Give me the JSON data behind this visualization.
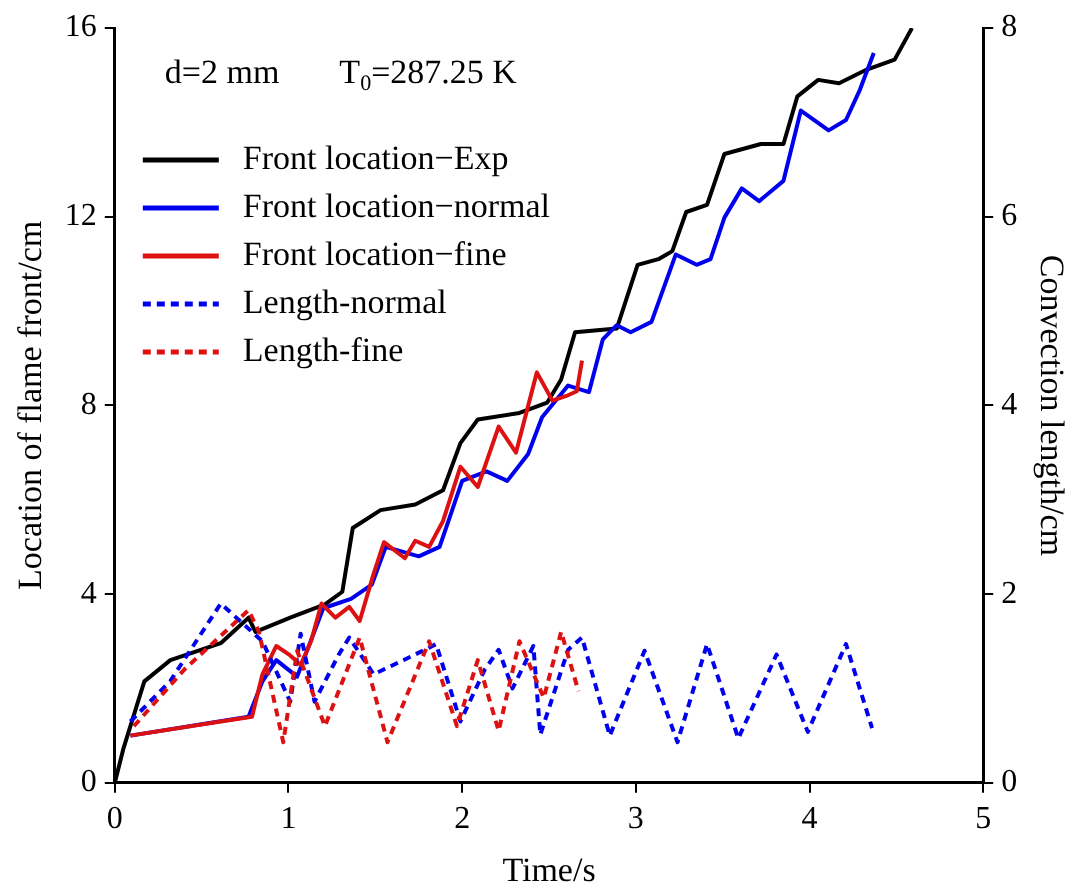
{
  "chart_data": {
    "type": "line",
    "xlabel": "Time/s",
    "ylabel": "Location of flame front/cm",
    "y2label": "Convection length/cm",
    "xlim": [
      0,
      5
    ],
    "xticks": [
      0,
      1,
      2,
      3,
      4,
      5
    ],
    "ylim": [
      0,
      16
    ],
    "yticks": [
      0,
      4,
      8,
      12,
      16
    ],
    "y2lim": [
      0,
      8
    ],
    "y2ticks": [
      0,
      2,
      4,
      6,
      8
    ],
    "grid": false,
    "legend": "top left",
    "marker": "none",
    "annotations": [
      "d=2 mm",
      "T$_{0}$=287.25 K"
    ],
    "series": [
      {
        "name": "Front location−Exp",
        "color": "#000000",
        "line_style": "solid",
        "x": [
          0,
          0.05,
          0.17,
          0.32,
          0.61,
          0.77,
          0.81,
          1.01,
          1.21,
          1.31,
          1.37,
          1.53,
          1.73,
          1.89,
          1.99,
          2.09,
          2.33,
          2.49,
          2.57,
          2.65,
          2.89,
          3.01,
          3.13,
          3.21,
          3.29,
          3.41,
          3.51,
          3.72,
          3.85,
          3.93,
          4.05,
          4.17,
          4.33,
          4.49,
          4.59
        ],
        "values": [
          0,
          0.73,
          2.15,
          2.6,
          2.96,
          3.5,
          3.2,
          3.5,
          3.78,
          4.05,
          5.4,
          5.78,
          5.9,
          6.2,
          7.2,
          7.7,
          7.84,
          8.06,
          8.55,
          9.55,
          9.63,
          10.98,
          11.1,
          11.27,
          12.1,
          12.25,
          13.33,
          13.54,
          13.54,
          14.55,
          14.9,
          14.83,
          15.12,
          15.33,
          16
        ]
      },
      {
        "name": "Front location−normal",
        "color": "#0000ee",
        "line_style": "solid",
        "x": [
          0.09,
          0.77,
          0.85,
          0.93,
          1.05,
          1.2,
          1.36,
          1.48,
          1.56,
          1.75,
          1.87,
          2.0,
          2.14,
          2.26,
          2.38,
          2.46,
          2.61,
          2.73,
          2.81,
          2.89,
          2.97,
          3.09,
          3.23,
          3.35,
          3.43,
          3.51,
          3.61,
          3.71,
          3.85,
          3.95,
          4.11,
          4.21,
          4.29,
          4.37
        ],
        "values": [
          1.0,
          1.4,
          2.15,
          2.6,
          2.25,
          3.7,
          3.9,
          4.2,
          5.0,
          4.8,
          5.0,
          6.4,
          6.6,
          6.4,
          6.97,
          7.75,
          8.42,
          8.28,
          9.4,
          9.7,
          9.55,
          9.77,
          11.2,
          10.98,
          11.1,
          11.98,
          12.6,
          12.33,
          12.76,
          14.25,
          13.83,
          14.05,
          14.69,
          15.47
        ]
      },
      {
        "name": "Front location−fine",
        "color": "#dd1111",
        "line_style": "solid",
        "x": [
          0.09,
          0.61,
          0.79,
          0.85,
          0.93,
          1.01,
          1.07,
          1.13,
          1.19,
          1.27,
          1.35,
          1.41,
          1.49,
          1.55,
          1.67,
          1.73,
          1.81,
          1.89,
          1.99,
          2.09,
          2.21,
          2.31,
          2.43,
          2.52,
          2.6,
          2.66,
          2.69
        ],
        "values": [
          1.0,
          1.3,
          1.4,
          2.3,
          2.9,
          2.7,
          2.5,
          3.0,
          3.8,
          3.5,
          3.73,
          3.43,
          4.43,
          5.1,
          4.76,
          5.13,
          5.0,
          5.55,
          6.7,
          6.27,
          7.55,
          7.0,
          8.7,
          8.1,
          8.2,
          8.3,
          8.95
        ]
      },
      {
        "name": "Length-normal",
        "color": "#0000ee",
        "line_style": "dashed",
        "axis": "y2",
        "x": [
          0.09,
          0.32,
          0.61,
          0.85,
          1.01,
          1.07,
          1.15,
          1.29,
          1.35,
          1.49,
          1.73,
          1.85,
          1.99,
          2.13,
          2.21,
          2.29,
          2.41,
          2.45,
          2.61,
          2.69,
          2.85,
          3.05,
          3.24,
          3.41,
          3.59,
          3.81,
          3.99,
          4.21,
          4.36
        ],
        "values": [
          0.65,
          1.08,
          1.9,
          1.5,
          0.86,
          1.58,
          0.86,
          1.36,
          1.54,
          1.15,
          1.36,
          1.47,
          0.65,
          1.2,
          1.41,
          1.0,
          1.45,
          0.51,
          1.41,
          1.54,
          0.5,
          1.4,
          0.43,
          1.47,
          0.47,
          1.36,
          0.54,
          1.47,
          0.58
        ]
      },
      {
        "name": "Length-fine",
        "color": "#dd1111",
        "line_style": "dashed",
        "axis": "y2",
        "x": [
          0.11,
          0.4,
          0.77,
          0.83,
          0.97,
          1.05,
          1.21,
          1.41,
          1.57,
          1.81,
          1.97,
          2.09,
          2.21,
          2.33,
          2.47,
          2.57,
          2.67
        ],
        "values": [
          0.6,
          1.2,
          1.83,
          1.6,
          0.43,
          1.4,
          0.6,
          1.54,
          0.43,
          1.5,
          0.6,
          1.3,
          0.55,
          1.5,
          0.9,
          1.6,
          0.97
        ]
      }
    ]
  }
}
